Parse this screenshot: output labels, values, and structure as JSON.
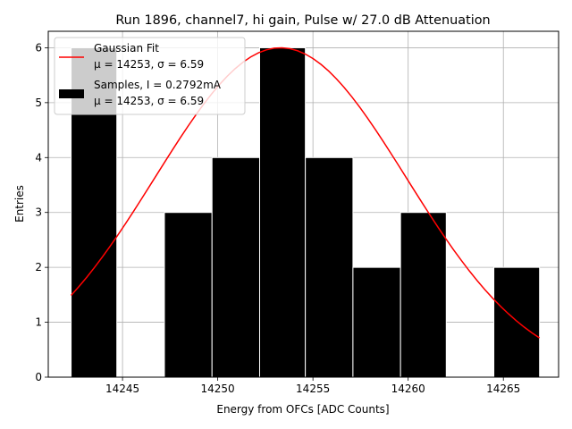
{
  "chart_data": {
    "type": "bar",
    "title": "Run 1896, channel7, hi gain, Pulse w/ 27.0 dB Attenuation",
    "xlabel": "Energy from OFCs [ADC Counts]",
    "ylabel": "Entries",
    "xlim": [
      14241.1,
      14267.9
    ],
    "ylim": [
      0,
      6.3
    ],
    "xticks": [
      14245,
      14250,
      14255,
      14260,
      14265
    ],
    "yticks": [
      0,
      1,
      2,
      3,
      4,
      5,
      6
    ],
    "xtick_labels": [
      "14245",
      "14250",
      "14255",
      "14260",
      "14265"
    ],
    "ytick_labels": [
      "0",
      "1",
      "2",
      "3",
      "4",
      "5",
      "6"
    ],
    "grid": true,
    "legend_position": "top-left",
    "histogram": {
      "name": "Samples, I = 0.2792mA",
      "stats": "μ = 14253, σ = 6.59",
      "color": "#000000",
      "edgecolor": "#ffffff",
      "bins": [
        {
          "x0": 14242.3,
          "x1": 14244.7,
          "count": 6
        },
        {
          "x0": 14244.7,
          "x1": 14247.2,
          "count": 0
        },
        {
          "x0": 14247.2,
          "x1": 14249.7,
          "count": 3
        },
        {
          "x0": 14249.7,
          "x1": 14252.2,
          "count": 4
        },
        {
          "x0": 14252.2,
          "x1": 14254.6,
          "count": 6
        },
        {
          "x0": 14254.6,
          "x1": 14257.1,
          "count": 4
        },
        {
          "x0": 14257.1,
          "x1": 14259.6,
          "count": 2
        },
        {
          "x0": 14259.6,
          "x1": 14262.0,
          "count": 3
        },
        {
          "x0": 14262.0,
          "x1": 14264.5,
          "count": 0
        },
        {
          "x0": 14264.5,
          "x1": 14266.9,
          "count": 2
        }
      ]
    },
    "fit": {
      "name": "Gaussian Fit",
      "stats": "μ = 14253, σ = 6.59",
      "color": "#ff0000",
      "mu": 14253.3,
      "sigma": 6.59,
      "amplitude": 6.0,
      "x_range": [
        14242.3,
        14266.9
      ]
    }
  }
}
